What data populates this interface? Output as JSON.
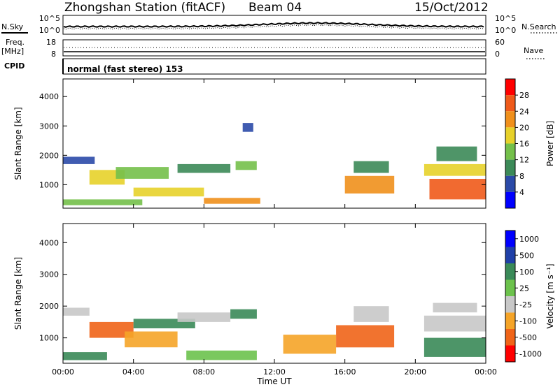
{
  "header": {
    "station": "Zhongshan Station (fitACF)",
    "beam": "Beam 04",
    "date": "15/Oct/2012"
  },
  "noise_panel": {
    "left_label": "N.Sky",
    "left_ticks": [
      "10^5",
      "10^0"
    ],
    "right_ticks": [
      "10^5",
      "10^0"
    ],
    "right_label": "N.Search"
  },
  "freq_panel": {
    "left_label_top": "Freq.",
    "left_label_unit": "[MHz]",
    "left_ticks": [
      "18",
      "8"
    ],
    "right_ticks": [
      "60",
      "0"
    ],
    "right_label": "Nave"
  },
  "cpid_panel": {
    "label": "CPID",
    "text": "normal (fast stereo) 153"
  },
  "colors": {
    "power": [
      "#0000ff",
      "#2b4aa8",
      "#3c8a58",
      "#74c04a",
      "#e7d12a",
      "#f0901c",
      "#ef5a1a",
      "#ff0000"
    ],
    "velocity": [
      "#ff0000",
      "#f06418",
      "#f5a428",
      "#c8c8c8",
      "#6cc24c",
      "#3a8a58",
      "#2040a8",
      "#0000ff"
    ]
  },
  "chart_data": [
    {
      "type": "heatmap",
      "name": "power",
      "ylabel": "Slant Range [km]",
      "xlabel": "",
      "x_ticks": [
        "00:00",
        "04:00",
        "08:00",
        "12:00",
        "16:00",
        "20:00",
        "00:00"
      ],
      "y_ticks": [
        "1000",
        "2000",
        "3000",
        "4000"
      ],
      "xlim_hours": [
        0,
        24
      ],
      "ylim_km": [
        200,
        4600
      ],
      "colorbar": {
        "label": "Power [dB]",
        "ticks": [
          "4",
          "8",
          "12",
          "16",
          "20",
          "24",
          "28"
        ]
      },
      "regions": [
        {
          "t0": 0.0,
          "t1": 4.5,
          "r0": 300,
          "r1": 500,
          "level": 3
        },
        {
          "t0": 0.0,
          "t1": 1.8,
          "r0": 1700,
          "r1": 1950,
          "level": 1
        },
        {
          "t0": 1.5,
          "t1": 3.5,
          "r0": 1000,
          "r1": 1500,
          "level": 4
        },
        {
          "t0": 3.0,
          "t1": 6.0,
          "r0": 1200,
          "r1": 1600,
          "level": 3
        },
        {
          "t0": 4.0,
          "t1": 8.0,
          "r0": 600,
          "r1": 900,
          "level": 4
        },
        {
          "t0": 6.5,
          "t1": 9.5,
          "r0": 1400,
          "r1": 1700,
          "level": 2
        },
        {
          "t0": 8.0,
          "t1": 11.2,
          "r0": 350,
          "r1": 550,
          "level": 5
        },
        {
          "t0": 9.8,
          "t1": 11.0,
          "r0": 1500,
          "r1": 1800,
          "level": 3
        },
        {
          "t0": 10.2,
          "t1": 10.8,
          "r0": 2800,
          "r1": 3100,
          "level": 1
        },
        {
          "t0": 16.0,
          "t1": 18.8,
          "r0": 700,
          "r1": 1300,
          "level": 5
        },
        {
          "t0": 16.5,
          "t1": 18.5,
          "r0": 1400,
          "r1": 1800,
          "level": 2
        },
        {
          "t0": 20.8,
          "t1": 24.0,
          "r0": 500,
          "r1": 1200,
          "level": 6
        },
        {
          "t0": 20.5,
          "t1": 24.0,
          "r0": 1300,
          "r1": 1700,
          "level": 4
        },
        {
          "t0": 21.2,
          "t1": 23.5,
          "r0": 1800,
          "r1": 2300,
          "level": 2
        }
      ]
    },
    {
      "type": "heatmap",
      "name": "velocity",
      "ylabel": "Slant Range [km]",
      "xlabel": "Time UT",
      "x_ticks": [
        "00:00",
        "04:00",
        "08:00",
        "12:00",
        "16:00",
        "20:00",
        "00:00"
      ],
      "y_ticks": [
        "1000",
        "2000",
        "3000",
        "4000"
      ],
      "xlim_hours": [
        0,
        24
      ],
      "ylim_km": [
        200,
        4600
      ],
      "colorbar": {
        "label": "Velocity [m s⁻¹]",
        "ticks": [
          "1000",
          "500",
          "100",
          "25",
          "-25",
          "-100",
          "-500",
          "-1000"
        ]
      },
      "regions": [
        {
          "t0": 0.0,
          "t1": 1.5,
          "r0": 1700,
          "r1": 1950,
          "level": 3
        },
        {
          "t0": 0.0,
          "t1": 2.5,
          "r0": 300,
          "r1": 550,
          "level": 5
        },
        {
          "t0": 1.5,
          "t1": 4.0,
          "r0": 1000,
          "r1": 1500,
          "level": 1
        },
        {
          "t0": 3.5,
          "t1": 6.5,
          "r0": 700,
          "r1": 1200,
          "level": 2
        },
        {
          "t0": 4.0,
          "t1": 7.5,
          "r0": 1300,
          "r1": 1600,
          "level": 5
        },
        {
          "t0": 6.5,
          "t1": 9.5,
          "r0": 1500,
          "r1": 1800,
          "level": 3
        },
        {
          "t0": 7.0,
          "t1": 11.0,
          "r0": 300,
          "r1": 600,
          "level": 4
        },
        {
          "t0": 9.5,
          "t1": 11.0,
          "r0": 1600,
          "r1": 1900,
          "level": 5
        },
        {
          "t0": 12.5,
          "t1": 15.5,
          "r0": 500,
          "r1": 1100,
          "level": 2
        },
        {
          "t0": 15.5,
          "t1": 18.8,
          "r0": 700,
          "r1": 1400,
          "level": 1
        },
        {
          "t0": 16.5,
          "t1": 18.5,
          "r0": 1500,
          "r1": 2000,
          "level": 3
        },
        {
          "t0": 20.5,
          "t1": 24.0,
          "r0": 400,
          "r1": 1000,
          "level": 5
        },
        {
          "t0": 20.5,
          "t1": 24.0,
          "r0": 1200,
          "r1": 1700,
          "level": 3
        },
        {
          "t0": 21.0,
          "t1": 23.5,
          "r0": 1800,
          "r1": 2100,
          "level": 3
        }
      ]
    }
  ]
}
